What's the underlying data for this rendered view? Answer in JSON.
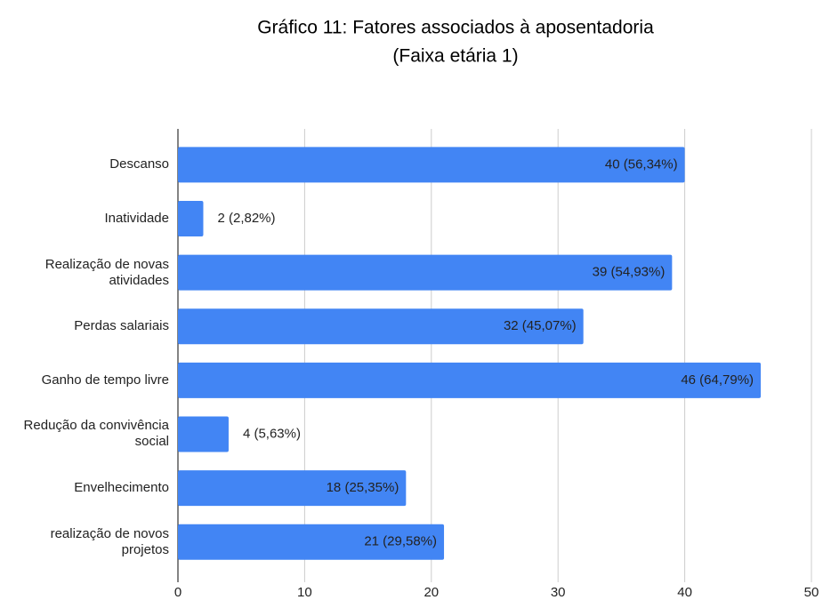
{
  "chart_data": {
    "type": "bar",
    "orientation": "horizontal",
    "title": "Gráfico 11: Fatores associados à aposentadoria",
    "subtitle": "(Faixa etária 1)",
    "categories": [
      "Descanso",
      "Inatividade",
      "Realização de novas atividades",
      "Perdas salariais",
      "Ganho de tempo livre",
      "Redução da convivência social",
      "Envelhecimento",
      "realização de novos projetos"
    ],
    "values": [
      40,
      2,
      39,
      32,
      46,
      4,
      18,
      21
    ],
    "value_labels": [
      "40 (56,34%)",
      "2 (2,82%)",
      "39 (54,93%)",
      "32 (45,07%)",
      "46 (64,79%)",
      "4 (5,63%)",
      "18 (25,35%)",
      "21 (29,58%)"
    ],
    "color": "#4285f4",
    "xlim": [
      0,
      50
    ],
    "xticks": [
      0,
      10,
      20,
      30,
      40,
      50
    ],
    "grid": true
  }
}
